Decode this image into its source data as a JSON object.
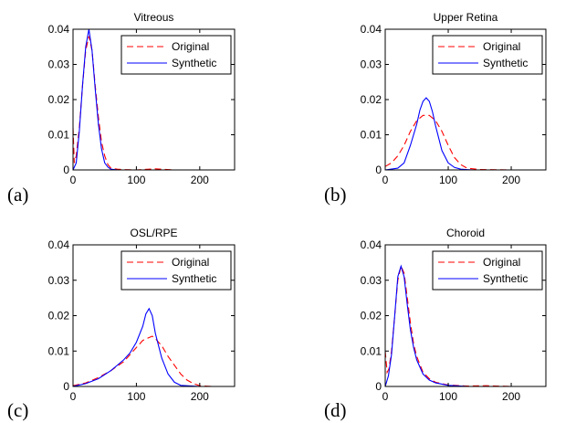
{
  "chart_data": [
    {
      "type": "line",
      "panel_label": "(a)",
      "title": "Vitreous",
      "xlim": [
        0,
        255
      ],
      "ylim": [
        0,
        0.04
      ],
      "xticks": [
        "0",
        "100",
        "200"
      ],
      "yticks": [
        "0",
        "0.01",
        "0.02",
        "0.03",
        "0.04"
      ],
      "grid": false,
      "legend_position": "top-right",
      "series": [
        {
          "name": "Original",
          "color": "#ff0000",
          "style": "dashed",
          "x": [
            0,
            2,
            5,
            10,
            15,
            20,
            25,
            30,
            35,
            40,
            45,
            50,
            55,
            60,
            70,
            80,
            100,
            130,
            160,
            255
          ],
          "y": [
            0.012,
            0.002,
            0.004,
            0.012,
            0.024,
            0.034,
            0.038,
            0.034,
            0.024,
            0.015,
            0.008,
            0.004,
            0.0015,
            0.0005,
            0.0002,
            0.0001,
            0.0,
            0.0003,
            0.0,
            0.0
          ]
        },
        {
          "name": "Synthetic",
          "color": "#0000ff",
          "style": "solid",
          "x": [
            0,
            5,
            10,
            15,
            20,
            25,
            30,
            35,
            40,
            45,
            50,
            55,
            60,
            70,
            80,
            100,
            255
          ],
          "y": [
            0.0,
            0.002,
            0.011,
            0.024,
            0.035,
            0.04,
            0.034,
            0.023,
            0.013,
            0.006,
            0.002,
            0.0008,
            0.0002,
            0.0,
            0.0,
            0.0,
            0.0
          ]
        }
      ]
    },
    {
      "type": "line",
      "panel_label": "(b)",
      "title": "Upper Retina",
      "xlim": [
        0,
        255
      ],
      "ylim": [
        0,
        0.04
      ],
      "xticks": [
        "0",
        "100",
        "200"
      ],
      "yticks": [
        "0",
        "0.01",
        "0.02",
        "0.03",
        "0.04"
      ],
      "grid": false,
      "legend_position": "top-right",
      "series": [
        {
          "name": "Original",
          "color": "#ff0000",
          "style": "dashed",
          "x": [
            0,
            10,
            20,
            30,
            40,
            50,
            60,
            70,
            80,
            90,
            100,
            110,
            120,
            130,
            150,
            200
          ],
          "y": [
            0.001,
            0.002,
            0.004,
            0.007,
            0.011,
            0.014,
            0.0155,
            0.0155,
            0.014,
            0.011,
            0.007,
            0.0035,
            0.0015,
            0.0005,
            0.0001,
            0.0
          ]
        },
        {
          "name": "Synthetic",
          "color": "#0000ff",
          "style": "solid",
          "x": [
            0,
            20,
            30,
            40,
            50,
            55,
            60,
            65,
            70,
            75,
            80,
            90,
            100,
            110,
            120,
            140,
            200
          ],
          "y": [
            0.0,
            0.0005,
            0.002,
            0.007,
            0.013,
            0.017,
            0.0195,
            0.0205,
            0.0195,
            0.0165,
            0.0125,
            0.0055,
            0.002,
            0.0007,
            0.0002,
            0.0,
            0.0
          ]
        }
      ]
    },
    {
      "type": "line",
      "panel_label": "(c)",
      "title": "OSL/RPE",
      "xlim": [
        0,
        255
      ],
      "ylim": [
        0,
        0.04
      ],
      "xticks": [
        "0",
        "100",
        "200"
      ],
      "yticks": [
        "0",
        "0.01",
        "0.02",
        "0.03",
        "0.04"
      ],
      "grid": false,
      "legend_position": "top-right",
      "series": [
        {
          "name": "Original",
          "color": "#ff0000",
          "style": "dashed",
          "x": [
            0,
            20,
            40,
            60,
            80,
            90,
            100,
            110,
            120,
            125,
            130,
            140,
            150,
            160,
            170,
            180,
            190,
            200,
            220
          ],
          "y": [
            0.0002,
            0.001,
            0.0025,
            0.0045,
            0.007,
            0.009,
            0.011,
            0.013,
            0.0138,
            0.0142,
            0.0135,
            0.0115,
            0.0085,
            0.006,
            0.0035,
            0.0018,
            0.0008,
            0.0002,
            0.0
          ]
        },
        {
          "name": "Synthetic",
          "color": "#0000ff",
          "style": "solid",
          "x": [
            0,
            20,
            40,
            60,
            80,
            90,
            100,
            110,
            115,
            120,
            125,
            130,
            140,
            150,
            160,
            170,
            200
          ],
          "y": [
            0.0,
            0.0008,
            0.0022,
            0.0045,
            0.0075,
            0.0095,
            0.0125,
            0.017,
            0.0205,
            0.022,
            0.02,
            0.015,
            0.008,
            0.0035,
            0.0012,
            0.0003,
            0.0
          ]
        }
      ]
    },
    {
      "type": "line",
      "panel_label": "(d)",
      "title": "Choroid",
      "xlim": [
        0,
        255
      ],
      "ylim": [
        0,
        0.04
      ],
      "xticks": [
        "0",
        "100",
        "200"
      ],
      "yticks": [
        "0",
        "0.01",
        "0.02",
        "0.03",
        "0.04"
      ],
      "grid": false,
      "legend_position": "top-right",
      "series": [
        {
          "name": "Original",
          "color": "#ff0000",
          "style": "dashed",
          "x": [
            0,
            3,
            6,
            10,
            15,
            20,
            25,
            30,
            35,
            40,
            45,
            50,
            60,
            70,
            80,
            100,
            130,
            160,
            200,
            255
          ],
          "y": [
            0.01,
            0.004,
            0.005,
            0.01,
            0.02,
            0.03,
            0.034,
            0.032,
            0.025,
            0.018,
            0.012,
            0.0085,
            0.004,
            0.0022,
            0.0012,
            0.0004,
            0.0001,
            0.0002,
            0.0,
            0.0
          ]
        },
        {
          "name": "Synthetic",
          "color": "#0000ff",
          "style": "solid",
          "x": [
            0,
            5,
            10,
            15,
            20,
            25,
            30,
            35,
            40,
            45,
            50,
            60,
            70,
            80,
            100,
            130,
            255
          ],
          "y": [
            0.0,
            0.003,
            0.009,
            0.02,
            0.031,
            0.034,
            0.031,
            0.023,
            0.016,
            0.011,
            0.0075,
            0.0035,
            0.0018,
            0.001,
            0.0003,
            0.0,
            0.0
          ]
        }
      ]
    }
  ]
}
